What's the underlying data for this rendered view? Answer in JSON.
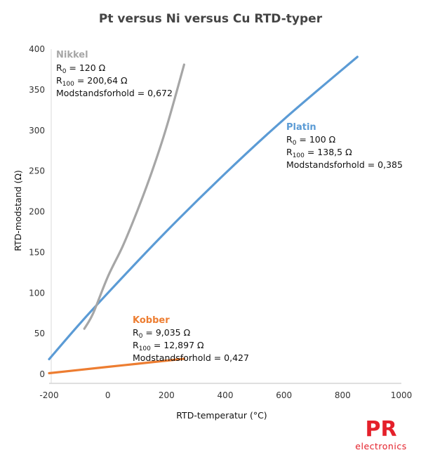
{
  "chart_data": {
    "type": "line",
    "title": "Pt versus Ni versus Cu RTD-typer",
    "xlabel": "RTD-temperatur (°C)",
    "ylabel": "RTD-modstand (Ω)",
    "xlim": [
      -200,
      1000
    ],
    "ylim": [
      0,
      400
    ],
    "xticks": [
      "-200",
      "0",
      "200",
      "400",
      "600",
      "800",
      "1000"
    ],
    "yticks": [
      "0",
      "50",
      "100",
      "150",
      "200",
      "250",
      "300",
      "350",
      "400"
    ],
    "grid": false,
    "series": [
      {
        "name": "Nikkel",
        "color": "#a6a6a6",
        "points": [
          [
            -80,
            56
          ],
          [
            -50,
            75
          ],
          [
            0,
            120
          ],
          [
            50,
            157
          ],
          [
            100,
            200.64
          ],
          [
            150,
            249
          ],
          [
            200,
            304
          ],
          [
            260,
            381
          ]
        ],
        "annotation": {
          "name": "Nikkel",
          "r0": "= 120 Ω",
          "r100": "= 200,64 Ω",
          "ratio": "Modstandsforhold = 0,672"
        }
      },
      {
        "name": "Platin",
        "color": "#5b9bd5",
        "points": [
          [
            -200,
            18.5
          ],
          [
            -100,
            60.3
          ],
          [
            0,
            100
          ],
          [
            200,
            175.9
          ],
          [
            400,
            247.1
          ],
          [
            600,
            313.7
          ],
          [
            850,
            390.5
          ]
        ],
        "annotation": {
          "name": "Platin",
          "r0": "= 100 Ω",
          "r100": "= 138,5 Ω",
          "ratio": "Modstandsforhold = 0,385"
        }
      },
      {
        "name": "Kobber",
        "color": "#ed7d31",
        "points": [
          [
            -200,
            1.3
          ],
          [
            0,
            9.035
          ],
          [
            100,
            12.897
          ],
          [
            260,
            19
          ]
        ],
        "annotation": {
          "name": "Kobber",
          "r0": "= 9,035 Ω",
          "r100": "= 12,897 Ω",
          "ratio": "Modstandsforhold = 0,427"
        }
      }
    ]
  },
  "logo": {
    "letters": "PR",
    "text": "electronics",
    "color": "#e4202a"
  }
}
